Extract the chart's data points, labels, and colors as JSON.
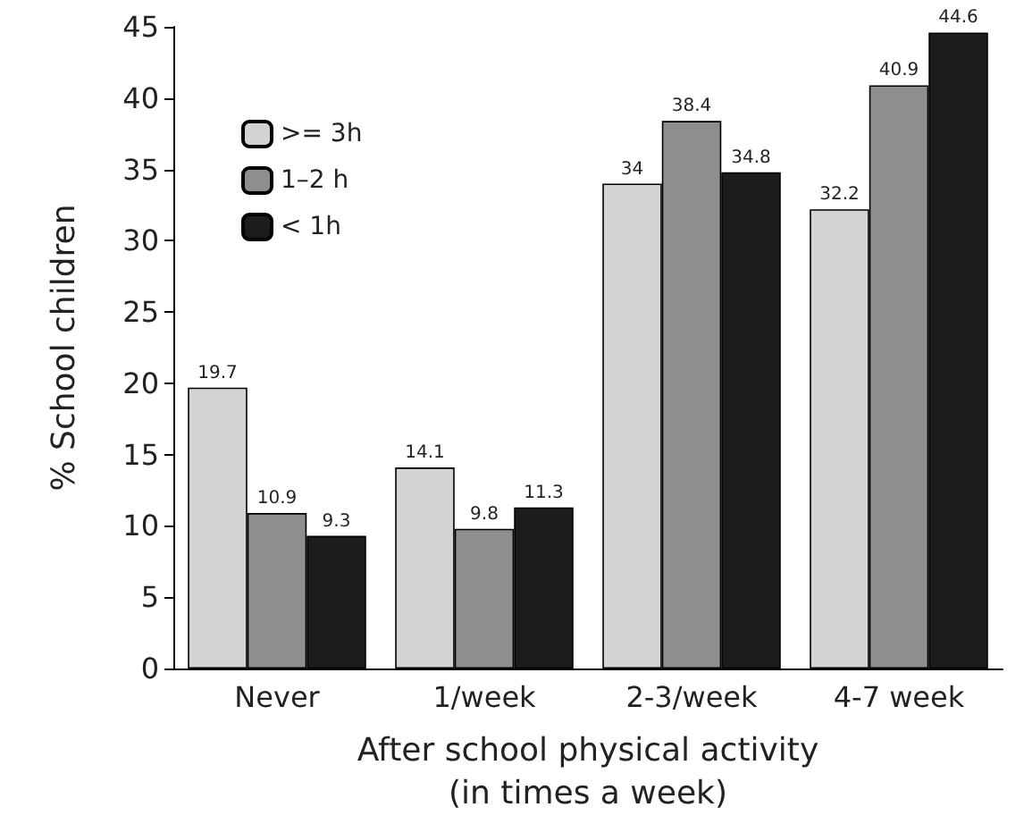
{
  "chart_data": {
    "type": "bar",
    "xlabel": "After school physical activity\n(in times a week)",
    "ylabel": "% School children",
    "categories": [
      "Never",
      "1/week",
      "2-3/week",
      "4-7 week"
    ],
    "series": [
      {
        "name": ">= 3h",
        "color": "#d3d3d3",
        "values": [
          19.7,
          14.1,
          34,
          32.2
        ]
      },
      {
        "name": "1–2 h",
        "color": "#8e8e8e",
        "values": [
          10.9,
          9.8,
          38.4,
          40.9
        ]
      },
      {
        "name": "< 1h",
        "color": "#1c1c1c",
        "values": [
          9.3,
          11.3,
          34.8,
          44.6
        ]
      }
    ],
    "ylim": [
      0,
      45
    ],
    "yticks": [
      0,
      5,
      10,
      15,
      20,
      25,
      30,
      35,
      40,
      45
    ],
    "grid": false,
    "legend": "top left",
    "data_labels": true
  }
}
